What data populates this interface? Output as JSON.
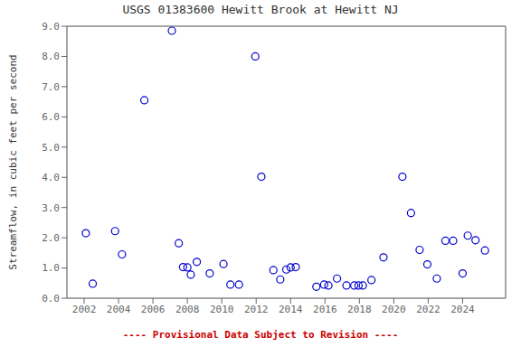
{
  "chart_data": {
    "type": "scatter",
    "title": "USGS 01383600 Hewitt Brook at Hewitt NJ",
    "y_label": "Streamflow, in cubic feet per second",
    "annotations": [
      {
        "text": "---- Provisional Data Subject to Revision ----",
        "color": "#CC0000"
      }
    ],
    "x": [
      2002.1,
      2002.5,
      2003.8,
      2004.2,
      2005.5,
      2007.1,
      2007.5,
      2007.75,
      2008.0,
      2008.2,
      2008.55,
      2009.3,
      2010.1,
      2010.5,
      2011.0,
      2011.95,
      2012.3,
      2013.0,
      2013.4,
      2013.75,
      2014.0,
      2014.3,
      2015.5,
      2015.95,
      2016.2,
      2016.7,
      2017.25,
      2017.7,
      2017.95,
      2018.2,
      2018.7,
      2019.4,
      2020.5,
      2021.0,
      2021.5,
      2021.95,
      2022.5,
      2023.0,
      2023.45,
      2024.0,
      2024.3,
      2024.75,
      2025.3
    ],
    "values": [
      2.15,
      0.48,
      2.22,
      1.45,
      6.55,
      8.85,
      1.82,
      1.03,
      1.02,
      0.78,
      1.2,
      0.82,
      1.13,
      0.45,
      0.45,
      8.0,
      4.02,
      0.93,
      0.62,
      0.95,
      1.02,
      1.03,
      0.38,
      0.45,
      0.42,
      0.65,
      0.42,
      0.42,
      0.42,
      0.42,
      0.6,
      1.35,
      4.02,
      2.82,
      1.6,
      1.12,
      0.65,
      1.9,
      1.9,
      0.82,
      2.07,
      1.92,
      1.58
    ],
    "color": "#0000CC",
    "marker": "circle",
    "xlim": [
      2001.0,
      2026.5
    ],
    "ylim": [
      0.0,
      9.0
    ],
    "xticks": [
      2002,
      2004,
      2006,
      2008,
      2010,
      2012,
      2014,
      2016,
      2018,
      2020,
      2022,
      2024
    ],
    "yticks": [
      {
        "value": 0.0,
        "label": "0.0"
      },
      {
        "value": 1.0,
        "label": "1.0"
      },
      {
        "value": 2.0,
        "label": "2.0"
      },
      {
        "value": 3.0,
        "label": "3.0"
      },
      {
        "value": 4.0,
        "label": "4.0"
      },
      {
        "value": 5.0,
        "label": "5.0"
      },
      {
        "value": 6.0,
        "label": "6.0"
      },
      {
        "value": 7.0,
        "label": "7.0"
      },
      {
        "value": 8.0,
        "label": "8.0"
      },
      {
        "value": 9.0,
        "label": "9.0"
      }
    ],
    "grid": true
  }
}
